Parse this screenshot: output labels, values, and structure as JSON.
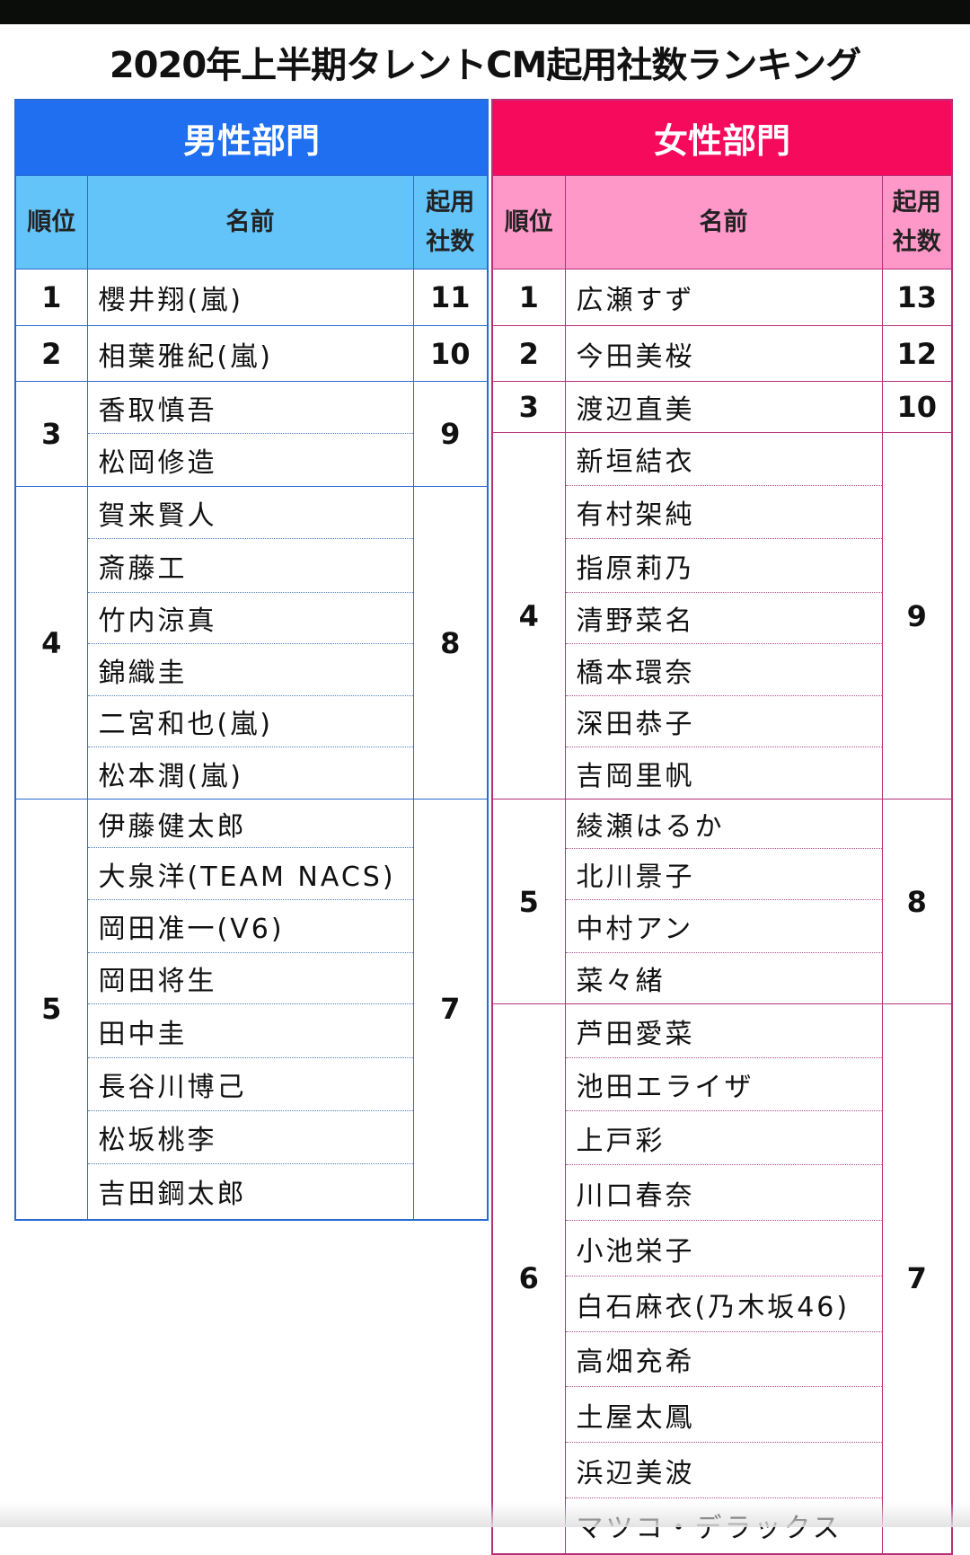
{
  "title": "2020年上半期タレントCM起用社数ランキング",
  "colors": {
    "male_header": "#1f6ff0",
    "male_subheader": "#63c4fa",
    "female_header": "#f60a5c",
    "female_subheader": "#fd98c8"
  },
  "male": {
    "section": "男性部門",
    "headers": {
      "rank": "順位",
      "name": "名前",
      "count_line1": "起用",
      "count_line2": "社数"
    },
    "groups": [
      {
        "rank": "1",
        "count": "11",
        "names": [
          "櫻井翔(嵐)"
        ]
      },
      {
        "rank": "2",
        "count": "10",
        "names": [
          "相葉雅紀(嵐)"
        ]
      },
      {
        "rank": "3",
        "count": "9",
        "names": [
          "香取慎吾",
          "松岡修造"
        ]
      },
      {
        "rank": "4",
        "count": "8",
        "names": [
          "賀来賢人",
          "斎藤工",
          "竹内涼真",
          "錦織圭",
          "二宮和也(嵐)",
          "松本潤(嵐)"
        ]
      },
      {
        "rank": "5",
        "count": "7",
        "names": [
          "伊藤健太郎",
          "大泉洋(TEAM NACS)",
          "岡田准一(V6)",
          "岡田将生",
          "田中圭",
          "長谷川博己",
          "松坂桃李",
          "吉田鋼太郎"
        ]
      }
    ]
  },
  "female": {
    "section": "女性部門",
    "headers": {
      "rank": "順位",
      "name": "名前",
      "count_line1": "起用",
      "count_line2": "社数"
    },
    "groups": [
      {
        "rank": "1",
        "count": "13",
        "names": [
          "広瀬すず"
        ]
      },
      {
        "rank": "2",
        "count": "12",
        "names": [
          "今田美桜"
        ]
      },
      {
        "rank": "3",
        "count": "10",
        "names": [
          "渡辺直美"
        ]
      },
      {
        "rank": "4",
        "count": "9",
        "names": [
          "新垣結衣",
          "有村架純",
          "指原莉乃",
          "清野菜名",
          "橋本環奈",
          "深田恭子",
          "吉岡里帆"
        ]
      },
      {
        "rank": "5",
        "count": "8",
        "names": [
          "綾瀬はるか",
          "北川景子",
          "中村アン",
          "菜々緒"
        ]
      },
      {
        "rank": "6",
        "count": "7",
        "names": [
          "芦田愛菜",
          "池田エライザ",
          "上戸彩",
          "川口春奈",
          "小池栄子",
          "白石麻衣(乃木坂46)",
          "高畑充希",
          "土屋太鳳",
          "浜辺美波",
          "マツコ・デラックス"
        ]
      }
    ]
  }
}
